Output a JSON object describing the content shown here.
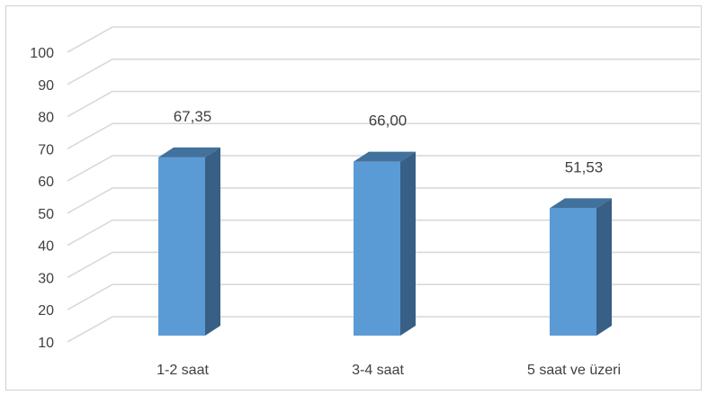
{
  "chart_data": {
    "type": "bar",
    "categories": [
      "1-2 saat",
      "3-4 saat",
      "5 saat ve üzeri"
    ],
    "values": [
      67.35,
      66.0,
      51.53
    ],
    "value_labels": [
      "67,35",
      "66,00",
      "51,53"
    ],
    "yticks": [
      "10",
      "20",
      "30",
      "40",
      "50",
      "60",
      "70",
      "80",
      "90",
      "100"
    ],
    "ylim": [
      10,
      100
    ],
    "grid": true,
    "legend": "none",
    "colors": {
      "front": "#5b9bd5",
      "top": "#41719c",
      "side": "#385f85",
      "grid": "#d9d9d9"
    }
  }
}
